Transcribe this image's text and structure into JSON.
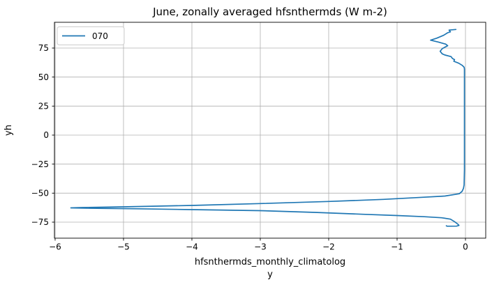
{
  "figure": {
    "background": "#ffffff"
  },
  "chart_data": {
    "type": "line",
    "title": "June, zonally averaged hfsnthermds (W m-2)",
    "xlabel_line1": "hfsnthermds_monthly_climatolog",
    "xlabel_line2": "y",
    "ylabel": "yh",
    "grid": true,
    "grid_color": "#b0b0b0",
    "legend_position": "upper left",
    "xlim": [
      -6.01,
      0.296
    ],
    "ylim": [
      -88.8,
      97.2
    ],
    "xticks": [
      {
        "value": -6,
        "label": "−6"
      },
      {
        "value": -5,
        "label": "−5"
      },
      {
        "value": -4,
        "label": "−4"
      },
      {
        "value": -3,
        "label": "−3"
      },
      {
        "value": -2,
        "label": "−2"
      },
      {
        "value": -1,
        "label": "−1"
      },
      {
        "value": 0,
        "label": "0"
      }
    ],
    "yticks": [
      {
        "value": 75,
        "label": "75"
      },
      {
        "value": 50,
        "label": "50"
      },
      {
        "value": 25,
        "label": "25"
      },
      {
        "value": 0,
        "label": "0"
      },
      {
        "value": -25,
        "label": "−25"
      },
      {
        "value": -50,
        "label": "−50"
      },
      {
        "value": -75,
        "label": "−75"
      }
    ],
    "series": [
      {
        "name": "070",
        "color": "#1f77b4",
        "x": [
          -0.14,
          -0.24,
          -0.22,
          -0.26,
          -0.32,
          -0.42,
          -0.51,
          -0.4,
          -0.29,
          -0.26,
          -0.34,
          -0.37,
          -0.34,
          -0.3,
          -0.21,
          -0.19,
          -0.16,
          -0.17,
          -0.1,
          -0.05,
          -0.02,
          -0.015,
          -0.015,
          -0.015,
          -0.015,
          -0.02,
          -0.03,
          -0.05,
          -0.09,
          -0.3,
          -0.7,
          -1.2,
          -2.0,
          -3.0,
          -4.0,
          -5.0,
          -5.6,
          -5.77,
          -5.5,
          -4.8,
          -4.0,
          -3.0,
          -2.2,
          -1.5,
          -1.0,
          -0.6,
          -0.35,
          -0.22,
          -0.16,
          -0.11,
          -0.095,
          -0.13,
          -0.27,
          -0.28
        ],
        "y": [
          91.0,
          90.5,
          89.0,
          88.2,
          86.0,
          83.5,
          81.8,
          80.2,
          78.4,
          77.0,
          74.5,
          72.2,
          70.0,
          69.0,
          67.6,
          66.0,
          65.0,
          63.6,
          62.0,
          60.2,
          58.5,
          57.0,
          30.0,
          0.0,
          -30.0,
          -43.0,
          -46.0,
          -48.5,
          -50.5,
          -52.5,
          -53.8,
          -55.4,
          -57.2,
          -59.0,
          -60.6,
          -61.8,
          -62.4,
          -62.7,
          -63.0,
          -63.5,
          -64.2,
          -65.1,
          -66.6,
          -68.2,
          -69.3,
          -70.3,
          -71.2,
          -72.4,
          -74.6,
          -76.8,
          -77.8,
          -78.4,
          -78.5,
          -78.1
        ]
      }
    ]
  }
}
